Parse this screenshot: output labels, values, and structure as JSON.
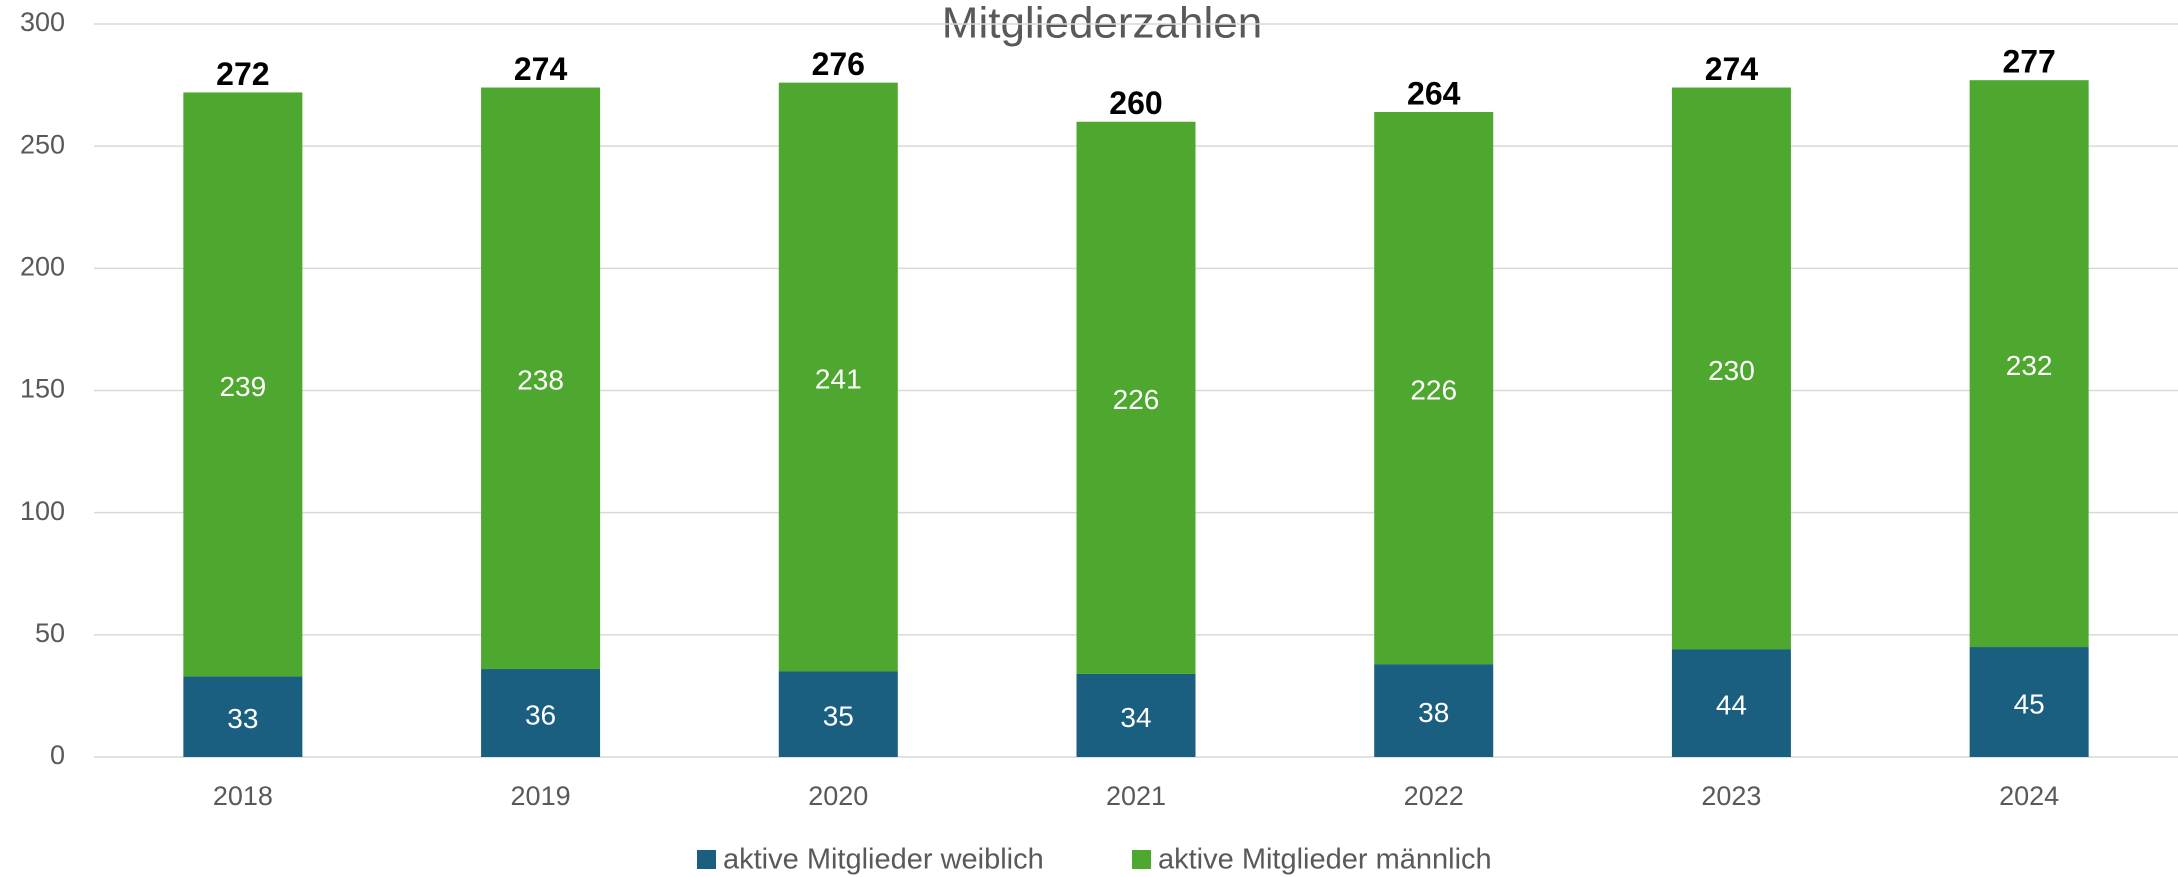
{
  "chart_data": {
    "type": "stacked_bar",
    "title": "Mitgliederzahlen",
    "categories": [
      "2018",
      "2019",
      "2020",
      "2021",
      "2022",
      "2023",
      "2024"
    ],
    "series": [
      {
        "name": "aktive Mitglieder weiblich",
        "color": "#1a5e80",
        "values": [
          33,
          36,
          35,
          34,
          38,
          44,
          45
        ]
      },
      {
        "name": "aktive Mitglieder männlich",
        "color": "#4ea72e",
        "values": [
          239,
          238,
          241,
          226,
          226,
          230,
          232
        ]
      }
    ],
    "totals": [
      272,
      274,
      276,
      260,
      264,
      274,
      277
    ],
    "ylim": [
      0,
      300
    ],
    "yticks": [
      0,
      50,
      100,
      150,
      200,
      250,
      300
    ],
    "grid": true,
    "legend": "bottom"
  }
}
